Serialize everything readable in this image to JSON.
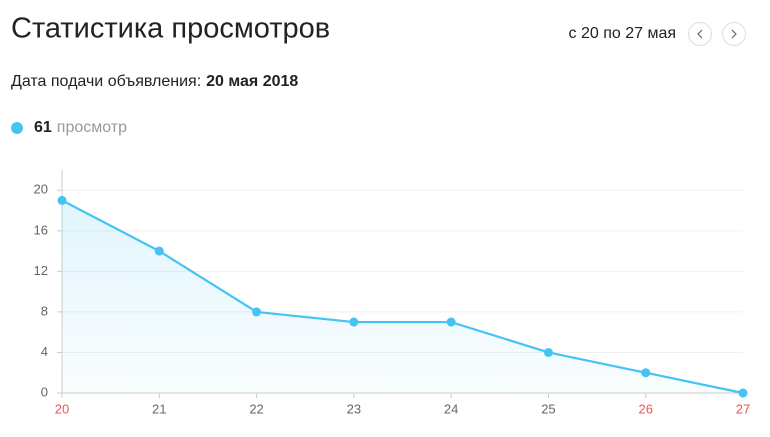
{
  "header": {
    "title": "Статистика просмотров",
    "range": "с 20 по 27 мая",
    "date_label": "Дата подачи объявления:",
    "date_value": "20 мая 2018"
  },
  "chart_data": {
    "type": "line",
    "total": 61,
    "categories": [
      "20",
      "21",
      "22",
      "23",
      "24",
      "25",
      "26",
      "27"
    ],
    "category_colors": [
      "#e8565a",
      "#666666",
      "#666666",
      "#666666",
      "#666666",
      "#666666",
      "#e8565a",
      "#e8565a"
    ],
    "series": [
      {
        "name": "просмотр",
        "color": "#45c3f2",
        "values": [
          19,
          14,
          8,
          7,
          7,
          4,
          2,
          0
        ]
      }
    ],
    "ylim": [
      0,
      22
    ],
    "yticks": [
      0,
      4,
      8,
      12,
      16,
      20
    ],
    "grid": true
  }
}
